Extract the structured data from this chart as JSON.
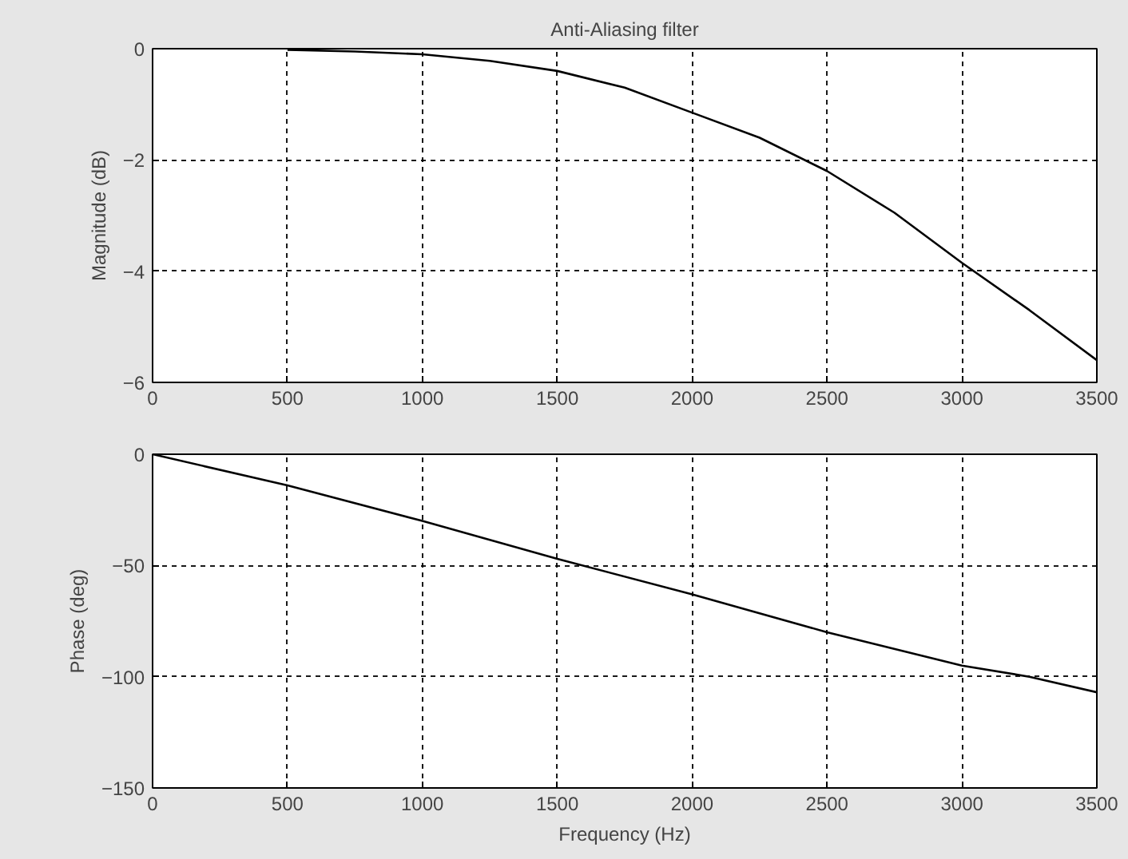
{
  "chart_data": [
    {
      "type": "line",
      "title": "Anti-Aliasing filter",
      "ylabel": "Magnitude (dB)",
      "x": [
        500,
        750,
        1000,
        1250,
        1500,
        1750,
        2000,
        2250,
        2500,
        2750,
        3000,
        3250,
        3500
      ],
      "series": [
        {
          "color": "#000000",
          "values": [
            -0.02,
            -0.05,
            -0.1,
            -0.22,
            -0.4,
            -0.7,
            -1.15,
            -1.6,
            -2.2,
            -2.95,
            -3.85,
            -4.7,
            -5.6
          ]
        }
      ],
      "xlim": [
        0,
        3500
      ],
      "xticks": [
        0,
        500,
        1000,
        1500,
        2000,
        2500,
        3000,
        3500
      ],
      "ylim": [
        -6,
        0
      ],
      "yticks": [
        -6,
        -4,
        -2,
        0
      ],
      "grid": true
    },
    {
      "type": "line",
      "xlabel": "Frequency (Hz)",
      "ylabel": "Phase (deg)",
      "x": [
        0,
        500,
        1000,
        1500,
        2000,
        2500,
        3000,
        3250,
        3500
      ],
      "series": [
        {
          "color": "#000000",
          "values": [
            0,
            -14,
            -30,
            -47,
            -63,
            -80,
            -95,
            -100,
            -107
          ]
        }
      ],
      "xlim": [
        0,
        3500
      ],
      "xticks": [
        0,
        500,
        1000,
        1500,
        2000,
        2500,
        3000,
        3500
      ],
      "ylim": [
        -150,
        0
      ],
      "yticks": [
        -150,
        -100,
        -50,
        0
      ],
      "grid": true
    }
  ]
}
